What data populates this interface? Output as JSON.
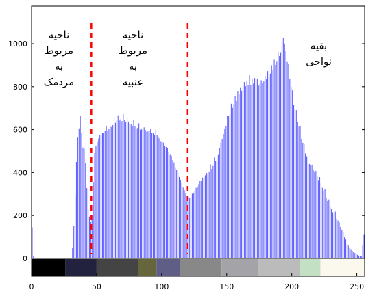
{
  "chart_data": {
    "type": "bar",
    "title": "",
    "xlabel": "",
    "ylabel": "",
    "xlim": [
      0,
      256
    ],
    "ylim": [
      -90,
      1100
    ],
    "grid": false,
    "series_color": "#0000ff",
    "divider_color": "#ff0000",
    "x_ticks": [
      "0",
      "50",
      "100",
      "150",
      "200",
      "250"
    ],
    "y_ticks": [
      "0",
      "200",
      "400",
      "600",
      "800",
      "1000"
    ],
    "region_dividers": [
      46,
      120
    ],
    "region_labels": [
      {
        "lines": [
          "ناحیه",
          "مربوط",
          "به",
          "مردمک"
        ],
        "region": "pupil"
      },
      {
        "lines": [
          "ناحیه",
          "مربوط",
          "به",
          "عنبیه"
        ],
        "region": "iris"
      },
      {
        "lines": [
          "بقیه",
          "نواحی"
        ],
        "region": "rest"
      }
    ],
    "colorbar_segments": [
      {
        "from": 0,
        "to": 26,
        "color": "#000000"
      },
      {
        "from": 26,
        "to": 50,
        "color": "#22223f"
      },
      {
        "from": 50,
        "to": 82,
        "color": "#444444"
      },
      {
        "from": 82,
        "to": 96,
        "color": "#66663c"
      },
      {
        "from": 96,
        "to": 114,
        "color": "#5e5e86"
      },
      {
        "from": 114,
        "to": 146,
        "color": "#888888"
      },
      {
        "from": 146,
        "to": 174,
        "color": "#a4a4a8"
      },
      {
        "from": 174,
        "to": 206,
        "color": "#bbbbbb"
      },
      {
        "from": 206,
        "to": 222,
        "color": "#c4e0c4"
      },
      {
        "from": 222,
        "to": 256,
        "color": "#fbf8ee"
      }
    ],
    "profile_points": [
      [
        0,
        150
      ],
      [
        1,
        10
      ],
      [
        2,
        0
      ],
      [
        30,
        0
      ],
      [
        31,
        50
      ],
      [
        32,
        150
      ],
      [
        33,
        300
      ],
      [
        34,
        450
      ],
      [
        35,
        560
      ],
      [
        36,
        610
      ],
      [
        37,
        620
      ],
      [
        38,
        580
      ],
      [
        39,
        520
      ],
      [
        40,
        480
      ],
      [
        41,
        440
      ],
      [
        42,
        330
      ],
      [
        43,
        230
      ],
      [
        44,
        180
      ],
      [
        45,
        170
      ],
      [
        46,
        200
      ],
      [
        47,
        360
      ],
      [
        48,
        470
      ],
      [
        49,
        520
      ],
      [
        50,
        545
      ],
      [
        52,
        570
      ],
      [
        55,
        590
      ],
      [
        58,
        600
      ],
      [
        62,
        620
      ],
      [
        65,
        640
      ],
      [
        68,
        645
      ],
      [
        72,
        640
      ],
      [
        76,
        625
      ],
      [
        80,
        610
      ],
      [
        84,
        600
      ],
      [
        88,
        595
      ],
      [
        92,
        585
      ],
      [
        96,
        570
      ],
      [
        100,
        545
      ],
      [
        104,
        510
      ],
      [
        108,
        460
      ],
      [
        112,
        400
      ],
      [
        115,
        350
      ],
      [
        118,
        300
      ],
      [
        120,
        285
      ],
      [
        122,
        290
      ],
      [
        125,
        315
      ],
      [
        128,
        345
      ],
      [
        131,
        375
      ],
      [
        134,
        395
      ],
      [
        137,
        410
      ],
      [
        140,
        440
      ],
      [
        143,
        490
      ],
      [
        146,
        560
      ],
      [
        149,
        620
      ],
      [
        152,
        680
      ],
      [
        155,
        720
      ],
      [
        158,
        750
      ],
      [
        161,
        780
      ],
      [
        164,
        800
      ],
      [
        167,
        810
      ],
      [
        170,
        810
      ],
      [
        173,
        805
      ],
      [
        176,
        810
      ],
      [
        179,
        830
      ],
      [
        182,
        850
      ],
      [
        185,
        880
      ],
      [
        188,
        920
      ],
      [
        191,
        960
      ],
      [
        193,
        990
      ],
      [
        195,
        960
      ],
      [
        197,
        880
      ],
      [
        199,
        800
      ],
      [
        201,
        720
      ],
      [
        204,
        640
      ],
      [
        207,
        560
      ],
      [
        210,
        490
      ],
      [
        213,
        440
      ],
      [
        216,
        410
      ],
      [
        219,
        380
      ],
      [
        222,
        350
      ],
      [
        225,
        300
      ],
      [
        228,
        250
      ],
      [
        231,
        220
      ],
      [
        234,
        190
      ],
      [
        237,
        150
      ],
      [
        240,
        100
      ],
      [
        243,
        60
      ],
      [
        246,
        35
      ],
      [
        249,
        20
      ],
      [
        252,
        10
      ],
      [
        253,
        10
      ],
      [
        254,
        60
      ],
      [
        255,
        110
      ]
    ],
    "spikes": [
      [
        37,
        45
      ],
      [
        40,
        30
      ],
      [
        44,
        20
      ],
      [
        48,
        20
      ],
      [
        57,
        15
      ],
      [
        63,
        25
      ],
      [
        66,
        30
      ],
      [
        70,
        30
      ],
      [
        73,
        20
      ],
      [
        78,
        30
      ],
      [
        82,
        20
      ],
      [
        86,
        15
      ],
      [
        91,
        20
      ],
      [
        95,
        25
      ],
      [
        137,
        25
      ],
      [
        140,
        25
      ],
      [
        150,
        25
      ],
      [
        153,
        25
      ],
      [
        156,
        25
      ],
      [
        158,
        30
      ],
      [
        160,
        30
      ],
      [
        163,
        30
      ],
      [
        165,
        30
      ],
      [
        167,
        40
      ],
      [
        169,
        25
      ],
      [
        171,
        35
      ],
      [
        173,
        25
      ],
      [
        176,
        25
      ],
      [
        179,
        25
      ],
      [
        181,
        25
      ],
      [
        184,
        25
      ],
      [
        186,
        30
      ],
      [
        189,
        25
      ],
      [
        192,
        30
      ],
      [
        193,
        40
      ],
      [
        194,
        25
      ],
      [
        197,
        25
      ],
      [
        200,
        20
      ],
      [
        203,
        20
      ],
      [
        206,
        25
      ],
      [
        209,
        25
      ],
      [
        212,
        20
      ],
      [
        215,
        20
      ],
      [
        218,
        20
      ],
      [
        221,
        20
      ],
      [
        225,
        20
      ],
      [
        228,
        20
      ],
      [
        233,
        15
      ]
    ]
  }
}
